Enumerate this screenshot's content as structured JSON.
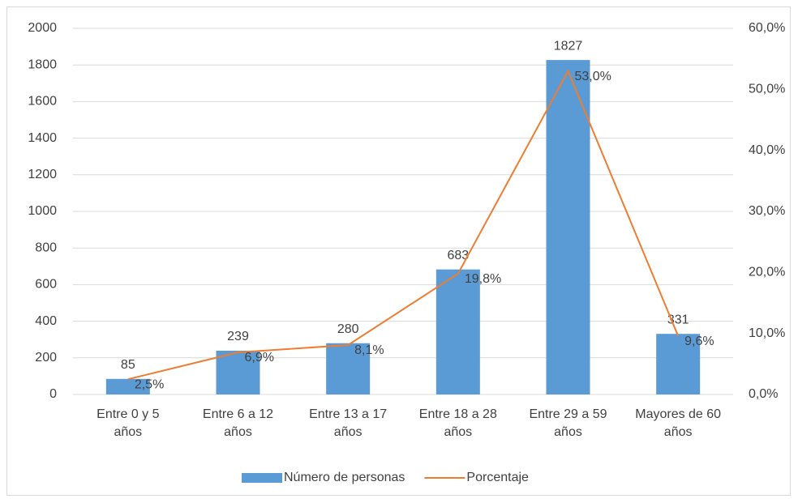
{
  "chart_data": {
    "type": "bar",
    "categories": [
      "Entre 0 y 5 años",
      "Entre 6 a 12 años",
      "Entre 13 a 17 años",
      "Entre 18 a 28 años",
      "Entre 29 a 59 años",
      "Mayores de 60 años"
    ],
    "series": [
      {
        "name": "Número de personas",
        "color": "#5b9bd5",
        "values": [
          85,
          239,
          280,
          683,
          1827,
          331
        ]
      },
      {
        "name": "Porcentaje",
        "type": "line",
        "axis": "y2",
        "color": "#ed7d31",
        "values": [
          2.5,
          6.9,
          8.1,
          19.8,
          53.0,
          9.6
        ],
        "value_labels": [
          "2,5%",
          "6,9%",
          "8,1%",
          "19,8%",
          "53,0%",
          "9,6%"
        ]
      }
    ],
    "ylim": [
      0,
      2000
    ],
    "yticks": [
      0,
      200,
      400,
      600,
      800,
      1000,
      1200,
      1400,
      1600,
      1800,
      2000
    ],
    "y2lim": [
      0,
      60
    ],
    "y2ticks": [
      {
        "value": 0,
        "label": "0,0%"
      },
      {
        "value": 10,
        "label": "10,0%"
      },
      {
        "value": 20,
        "label": "20,0%"
      },
      {
        "value": 30,
        "label": "30,0%"
      },
      {
        "value": 40,
        "label": "40,0%"
      },
      {
        "value": 50,
        "label": "50,0%"
      },
      {
        "value": 60,
        "label": "60,0%"
      }
    ],
    "grid": true,
    "legend": "bottom"
  }
}
